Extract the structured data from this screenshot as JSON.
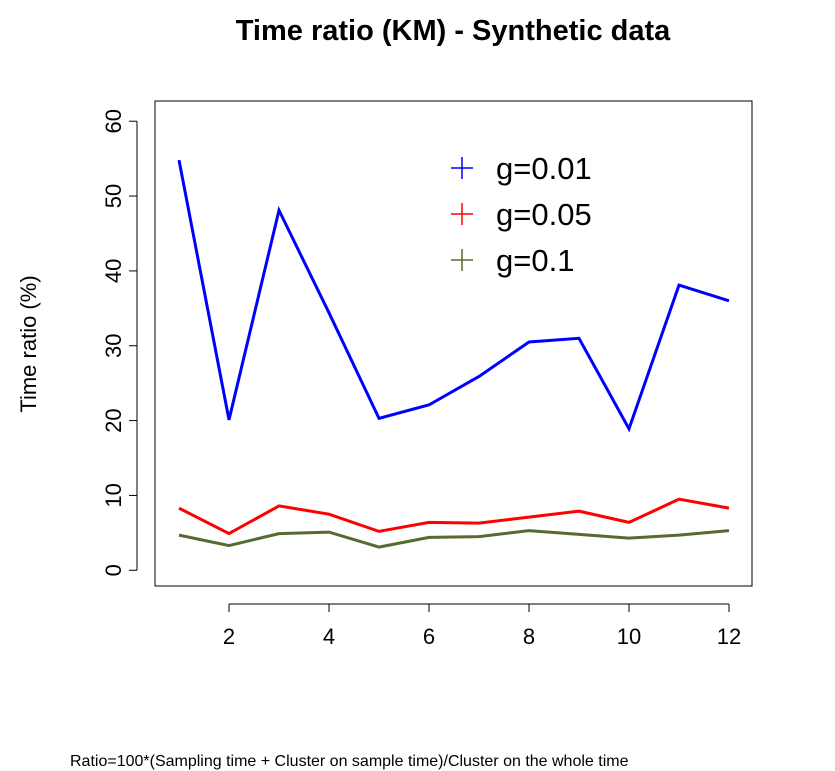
{
  "chart_data": {
    "type": "line",
    "title": "Time ratio (KM) - Synthetic data",
    "y_label": "Time ratio (%)",
    "footnote": "Ratio=100*(Sampling time + Cluster on sample time)/Cluster on the whole time",
    "x": [
      1,
      2,
      3,
      4,
      5,
      6,
      7,
      8,
      9,
      10,
      11,
      12
    ],
    "series": [
      {
        "name": "g=0.01",
        "color": "#0000ff",
        "values": [
          54.8,
          20.1,
          48.1,
          34.4,
          20.3,
          22.1,
          25.9,
          30.5,
          31.0,
          18.9,
          38.1,
          36.0
        ]
      },
      {
        "name": "g=0.05",
        "color": "#ff0000",
        "values": [
          8.3,
          4.9,
          8.6,
          7.5,
          5.2,
          6.4,
          6.3,
          7.1,
          7.9,
          6.4,
          9.5,
          8.3
        ]
      },
      {
        "name": "g=0.1",
        "color": "#556b2f",
        "values": [
          4.7,
          3.3,
          4.9,
          5.1,
          3.1,
          4.4,
          4.5,
          5.3,
          4.8,
          4.3,
          4.7,
          5.3
        ]
      }
    ],
    "xlim": [
      0.52,
      12.46
    ],
    "ylim": [
      -2.1,
      62.7
    ],
    "xticks": [
      2,
      4,
      6,
      8,
      10,
      12
    ],
    "yticks": [
      0,
      10,
      20,
      30,
      40,
      50,
      60
    ],
    "legend": "top-right"
  }
}
